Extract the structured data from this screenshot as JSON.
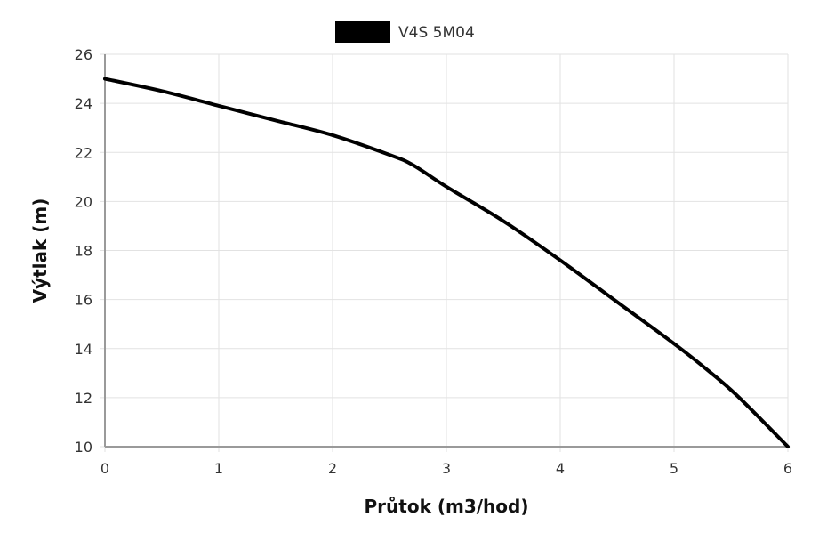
{
  "chart_data": {
    "type": "line",
    "xlabel": "Průtok (m3/hod)",
    "ylabel": "Výtlak (m)",
    "xlim": [
      0,
      6
    ],
    "ylim": [
      10,
      26
    ],
    "x_ticks": [
      0,
      1,
      2,
      3,
      4,
      5,
      6
    ],
    "y_ticks": [
      10,
      12,
      14,
      16,
      18,
      20,
      22,
      24,
      26
    ],
    "grid": true,
    "legend_position": "top-center",
    "series": [
      {
        "name": "V4S 5M04",
        "color": "#000000",
        "x": [
          0,
          0.5,
          1,
          1.5,
          2,
          2.5,
          2.7,
          3,
          3.5,
          4,
          4.5,
          5,
          5.3,
          5.55,
          6
        ],
        "y": [
          25.0,
          24.5,
          23.9,
          23.3,
          22.7,
          21.9,
          21.5,
          20.6,
          19.2,
          17.6,
          15.9,
          14.2,
          13.1,
          12.1,
          10.0
        ]
      }
    ]
  }
}
